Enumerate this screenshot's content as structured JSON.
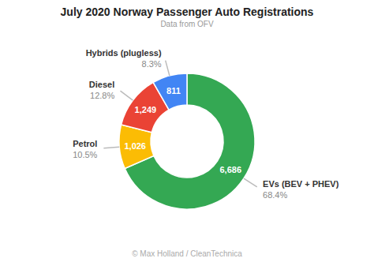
{
  "chart_data": {
    "type": "donut",
    "title": "July 2020 Norway Passenger Auto Registrations",
    "subtitle": "Data from OFV",
    "annotations": [
      "© Max Holland / CleanTechnica"
    ],
    "categories": [
      "EVs (BEV + PHEV)",
      "Petrol",
      "Diesel",
      "Hybrids (plugless)"
    ],
    "values": [
      6686,
      1026,
      1249,
      811
    ],
    "value_labels": [
      "6,686",
      "1,026",
      "1,249",
      "811"
    ],
    "shares": [
      68.4,
      10.5,
      12.8,
      8.3
    ],
    "share_labels": [
      "68.4%",
      "10.5%",
      "12.8%",
      "8.3%"
    ],
    "colors": [
      "#34a853",
      "#fbbc04",
      "#ea4335",
      "#4285f4"
    ],
    "data_labels": true
  }
}
